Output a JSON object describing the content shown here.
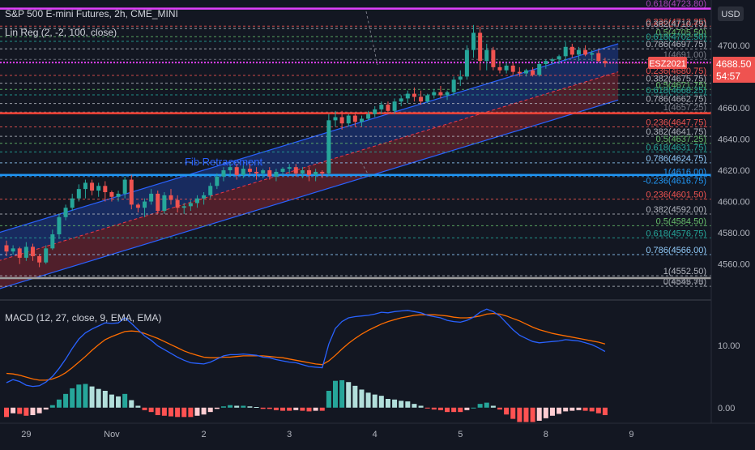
{
  "legend": {
    "symbol_line": "S&P 500 E-mini Futures, 2h, CME_MINI",
    "linreg_line": "Lin Reg (2, -2, 100, close)",
    "macd_line": "MACD (12, 27, close, 9, EMA, EMA)"
  },
  "price_axis": {
    "currency_button": "USD",
    "ticks": [
      "4700.00",
      "4680.00",
      "4660.00",
      "4640.00",
      "4620.00",
      "4600.00",
      "4580.00",
      "4560.00"
    ],
    "macd_ticks": [
      "10.00",
      "0.00"
    ]
  },
  "last_price": {
    "label": "ESZ2021",
    "value": "4688.50",
    "countdown": "54:57"
  },
  "fib_label": "Fib Retracement",
  "time_axis": [
    "29",
    "Nov",
    "2",
    "3",
    "4",
    "5",
    "8",
    "9"
  ],
  "colors": {
    "background": "#131722",
    "up": "#26a69a",
    "down": "#ef5350",
    "channel_upper": "#2962ff",
    "channel_lower": "#f23645",
    "macd": "#2962ff",
    "signal": "#ff6d00",
    "hist_up_strong": "#26a69a",
    "hist_up_weak": "#b2dfdb",
    "hist_down_strong": "#ff5252",
    "hist_down_weak": "#ffcdd2",
    "magenta_line": "#e040fb",
    "red_line": "#f44336",
    "blue_line": "#2196f3"
  },
  "fib_sets": [
    {
      "name": "fib-upper",
      "levels": [
        {
          "label": "0.618(4723.80)",
          "value": 4723.8,
          "color": "#ab47bc"
        },
        {
          "label": "0.236(4712.25)",
          "value": 4712.25,
          "color": "#ef5350"
        },
        {
          "label": "0.382(4710.75)",
          "value": 4710.75,
          "color": "#b2b5be"
        },
        {
          "label": "0.5(4705.50)",
          "value": 4705.5,
          "color": "#66bb6a"
        },
        {
          "label": "0.618(4702.50)",
          "value": 4702.5,
          "color": "#26a69a"
        },
        {
          "label": "0.786(4697.75)",
          "value": 4697.75,
          "color": "#b2b5be"
        },
        {
          "label": "1(4691.00)",
          "value": 4691.0,
          "color": "#787b86"
        }
      ]
    },
    {
      "name": "fib-mid",
      "levels": [
        {
          "label": "0.236(4680.75)",
          "value": 4680.75,
          "color": "#ef5350"
        },
        {
          "label": "0.382(4675.75)",
          "value": 4675.75,
          "color": "#b2b5be"
        },
        {
          "label": "0.5(4671.75)",
          "value": 4671.75,
          "color": "#66bb6a"
        },
        {
          "label": "0.618(4668.25)",
          "value": 4668.25,
          "color": "#26a69a"
        },
        {
          "label": "0.786(4662.75)",
          "value": 4662.75,
          "color": "#b2b5be"
        },
        {
          "label": "1(4657.25)",
          "value": 4657.25,
          "color": "#787b86"
        }
      ]
    },
    {
      "name": "fib-lower",
      "levels": [
        {
          "label": "0.236(4647.75)",
          "value": 4647.75,
          "color": "#ef5350"
        },
        {
          "label": "0.382(4641.75)",
          "value": 4641.75,
          "color": "#b2b5be"
        },
        {
          "label": "0.5(4637.25)",
          "value": 4637.25,
          "color": "#66bb6a"
        },
        {
          "label": "0.618(4631.75)",
          "value": 4631.75,
          "color": "#26a69a"
        },
        {
          "label": "0.786(4624.75)",
          "value": 4624.75,
          "color": "#90caf9"
        },
        {
          "label": "1(4616.00)",
          "value": 4616.0,
          "color": "#2196f3"
        }
      ]
    },
    {
      "name": "fib-bottom",
      "levels": [
        {
          "label": "0.236(4601.50)",
          "value": 4601.5,
          "color": "#ef5350"
        },
        {
          "label": "0.382(4592.00)",
          "value": 4592.0,
          "color": "#b2b5be"
        },
        {
          "label": "0.5(4584.50)",
          "value": 4584.5,
          "color": "#66bb6a"
        },
        {
          "label": "0.618(4576.75)",
          "value": 4576.75,
          "color": "#26a69a"
        },
        {
          "label": "0.786(4566.00)",
          "value": 4566.0,
          "color": "#90caf9"
        },
        {
          "label": "1(4552.50)",
          "value": 4552.5,
          "color": "#b2b5be"
        },
        {
          "label": "0(4545.75)",
          "value": 4545.75,
          "color": "#b2b5be"
        }
      ]
    }
  ],
  "extra_fib_labels": [
    {
      "label": "-0.236(4616.75)",
      "value": 4616.75,
      "color": "#2196f3"
    },
    {
      "label": "0(4552.50)",
      "value": 4552.5,
      "color": "#787b86"
    }
  ],
  "horizontal_lines": [
    {
      "name": "magenta-top-line",
      "value": 4723.5,
      "color": "#e040fb",
      "style": "solid"
    },
    {
      "name": "magenta-dotted-line",
      "value": 4689,
      "color": "#e040fb",
      "style": "dotted"
    },
    {
      "name": "red-level-line",
      "value": 4656.5,
      "color": "#f44336",
      "style": "solid"
    },
    {
      "name": "blue-level-line",
      "value": 4617,
      "color": "#2196f3",
      "style": "solid"
    },
    {
      "name": "grey-bottom-line",
      "value": 4551,
      "color": "#9e9e9e",
      "style": "solid"
    }
  ],
  "chart_data": {
    "type": "candlestick",
    "title": "S&P 500 E-mini Futures, 2h, CME_MINI",
    "ylim": [
      4538,
      4729
    ],
    "y_ticks": [
      4560,
      4580,
      4600,
      4620,
      4640,
      4660,
      4680,
      4700
    ],
    "x_ticks": [
      {
        "label": "29",
        "index": 3
      },
      {
        "label": "Nov",
        "index": 16
      },
      {
        "label": "2",
        "index": 30
      },
      {
        "label": "3",
        "index": 43
      },
      {
        "label": "4",
        "index": 56
      },
      {
        "label": "5",
        "index": 69
      },
      {
        "label": "8",
        "index": 82
      },
      {
        "label": "9",
        "index": 95
      }
    ],
    "candles": [
      [
        4572,
        4575,
        4565,
        4568
      ],
      [
        4568,
        4572,
        4566,
        4570
      ],
      [
        4570,
        4571,
        4560,
        4564
      ],
      [
        4564,
        4574,
        4562,
        4571
      ],
      [
        4571,
        4573,
        4562,
        4565
      ],
      [
        4565,
        4566,
        4558,
        4561
      ],
      [
        4561,
        4572,
        4560,
        4570
      ],
      [
        4570,
        4582,
        4569,
        4579
      ],
      [
        4579,
        4592,
        4576,
        4590
      ],
      [
        4590,
        4598,
        4588,
        4596
      ],
      [
        4596,
        4605,
        4594,
        4602
      ],
      [
        4602,
        4611,
        4600,
        4608
      ],
      [
        4608,
        4614,
        4602,
        4612
      ],
      [
        4612,
        4614,
        4604,
        4607
      ],
      [
        4607,
        4612,
        4603,
        4610
      ],
      [
        4610,
        4613,
        4600,
        4606
      ],
      [
        4606,
        4607,
        4600,
        4603
      ],
      [
        4603,
        4607,
        4600,
        4605
      ],
      [
        4605,
        4616,
        4602,
        4614
      ],
      [
        4614,
        4617,
        4595,
        4598
      ],
      [
        4598,
        4599,
        4593,
        4596
      ],
      [
        4596,
        4602,
        4590,
        4600
      ],
      [
        4600,
        4608,
        4598,
        4605
      ],
      [
        4605,
        4607,
        4592,
        4594
      ],
      [
        4594,
        4606,
        4592,
        4604
      ],
      [
        4604,
        4608,
        4598,
        4601
      ],
      [
        4601,
        4604,
        4593,
        4596
      ],
      [
        4596,
        4599,
        4592,
        4597
      ],
      [
        4597,
        4601,
        4594,
        4599
      ],
      [
        4599,
        4604,
        4596,
        4602
      ],
      [
        4602,
        4606,
        4598,
        4604
      ],
      [
        4604,
        4612,
        4602,
        4610
      ],
      [
        4610,
        4618,
        4608,
        4616
      ],
      [
        4616,
        4622,
        4613,
        4620
      ],
      [
        4620,
        4624,
        4616,
        4622
      ],
      [
        4622,
        4624,
        4614,
        4617
      ],
      [
        4617,
        4623,
        4615,
        4621
      ],
      [
        4621,
        4624,
        4617,
        4619
      ],
      [
        4619,
        4622,
        4614,
        4618
      ],
      [
        4618,
        4621,
        4615,
        4620
      ],
      [
        4620,
        4622,
        4614,
        4616
      ],
      [
        4616,
        4621,
        4613,
        4619
      ],
      [
        4619,
        4622,
        4617,
        4621
      ],
      [
        4621,
        4624,
        4618,
        4622
      ],
      [
        4622,
        4624,
        4616,
        4618
      ],
      [
        4618,
        4622,
        4615,
        4620
      ],
      [
        4620,
        4622,
        4613,
        4617
      ],
      [
        4617,
        4621,
        4613,
        4619
      ],
      [
        4619,
        4620,
        4615,
        4618
      ],
      [
        4618,
        4656,
        4616,
        4652
      ],
      [
        4652,
        4658,
        4648,
        4654
      ],
      [
        4654,
        4658,
        4646,
        4650
      ],
      [
        4650,
        4656,
        4648,
        4655
      ],
      [
        4655,
        4657,
        4648,
        4651
      ],
      [
        4651,
        4655,
        4648,
        4653
      ],
      [
        4653,
        4658,
        4652,
        4656
      ],
      [
        4656,
        4661,
        4654,
        4659
      ],
      [
        4659,
        4664,
        4656,
        4662
      ],
      [
        4662,
        4664,
        4656,
        4658
      ],
      [
        4658,
        4666,
        4656,
        4664
      ],
      [
        4664,
        4668,
        4661,
        4666
      ],
      [
        4666,
        4671,
        4663,
        4669
      ],
      [
        4669,
        4673,
        4664,
        4667
      ],
      [
        4667,
        4671,
        4662,
        4664
      ],
      [
        4664,
        4669,
        4663,
        4668
      ],
      [
        4668,
        4672,
        4666,
        4670
      ],
      [
        4670,
        4674,
        4666,
        4668
      ],
      [
        4668,
        4671,
        4665,
        4670
      ],
      [
        4670,
        4680,
        4668,
        4678
      ],
      [
        4678,
        4684,
        4674,
        4680
      ],
      [
        4680,
        4700,
        4678,
        4697
      ],
      [
        4697,
        4713,
        4692,
        4708
      ],
      [
        4708,
        4712,
        4684,
        4690
      ],
      [
        4690,
        4701,
        4684,
        4697
      ],
      [
        4697,
        4699,
        4684,
        4686
      ],
      [
        4686,
        4690,
        4682,
        4684
      ],
      [
        4684,
        4689,
        4682,
        4687
      ],
      [
        4687,
        4689,
        4681,
        4683
      ],
      [
        4683,
        4686,
        4680,
        4682
      ],
      [
        4682,
        4685,
        4680,
        4684
      ],
      [
        4684,
        4686,
        4680,
        4681
      ],
      [
        4681,
        4690,
        4680,
        4688
      ],
      [
        4688,
        4691,
        4685,
        4690
      ],
      [
        4690,
        4692,
        4688,
        4691
      ],
      [
        4691,
        4694,
        4688,
        4693
      ],
      [
        4693,
        4702,
        4690,
        4699
      ],
      [
        4699,
        4701,
        4692,
        4694
      ],
      [
        4694,
        4699,
        4690,
        4697
      ],
      [
        4697,
        4700,
        4693,
        4694
      ],
      [
        4694,
        4697,
        4690,
        4695
      ],
      [
        4695,
        4697,
        4689,
        4690
      ],
      [
        4690,
        4692,
        4686,
        4688.5
      ]
    ],
    "regression_channel": {
      "start_index": 0,
      "end_index": 93,
      "center_start": 4562,
      "center_end": 4683,
      "upper_offset": 18,
      "lower_offset": -18
    },
    "macd": {
      "name": "MACD (12, 27, close, 9, EMA, EMA)",
      "ylim": [
        -2.5,
        17
      ],
      "macd_line": [
        4,
        4.5,
        4.2,
        3.6,
        3.4,
        3.5,
        4.1,
        5,
        6.3,
        7.8,
        9.5,
        11,
        12,
        12.6,
        13.1,
        13.6,
        13.5,
        13.6,
        14.4,
        13.5,
        12.5,
        11.5,
        10.8,
        9.9,
        9.3,
        8.7,
        8.1,
        7.6,
        7.2,
        7.1,
        7,
        7.3,
        7.8,
        8.3,
        8.5,
        8.5,
        8.6,
        8.5,
        8.4,
        8.1,
        8,
        7.7,
        7.5,
        7.3,
        7.2,
        6.9,
        6.6,
        6.5,
        6.4,
        10.2,
        12.7,
        13.8,
        14.4,
        14.6,
        14.7,
        14.8,
        15,
        15.3,
        15.2,
        15.4,
        15.5,
        15.6,
        15.4,
        15.2,
        14.8,
        14.6,
        14.4,
        14,
        13.8,
        13.7,
        14,
        14.5,
        15.3,
        15.8,
        15.4,
        14.7,
        13.6,
        12.5,
        11.6,
        11.1,
        10.6,
        10.4,
        10.5,
        10.6,
        10.7,
        10.9,
        10.8,
        10.7,
        10.4,
        10.1,
        9.6,
        9
      ],
      "signal_line": [
        5.5,
        5.4,
        5.2,
        4.9,
        4.6,
        4.4,
        4.4,
        4.6,
        5,
        5.6,
        6.4,
        7.3,
        8.2,
        9.2,
        10.1,
        10.9,
        11.4,
        11.8,
        12.2,
        12.3,
        12.2,
        11.9,
        11.5,
        11.1,
        10.6,
        10.1,
        9.6,
        9.1,
        8.7,
        8.4,
        8.1,
        8,
        8,
        8.1,
        8.1,
        8.2,
        8.3,
        8.3,
        8.3,
        8.3,
        8.2,
        8.1,
        8,
        7.8,
        7.6,
        7.4,
        7.2,
        7,
        6.9,
        7.5,
        8.4,
        9.4,
        10.3,
        11.1,
        11.8,
        12.4,
        12.9,
        13.4,
        13.8,
        14.1,
        14.4,
        14.6,
        14.8,
        14.9,
        14.9,
        14.9,
        14.8,
        14.7,
        14.5,
        14.4,
        14.4,
        14.5,
        14.7,
        15,
        15.1,
        15,
        14.7,
        14.3,
        13.9,
        13.4,
        12.9,
        12.5,
        12.2,
        11.9,
        11.7,
        11.5,
        11.3,
        11.1,
        10.9,
        10.7,
        10.5,
        10.2
      ],
      "histogram": [
        -1.5,
        -0.9,
        -1,
        -1.3,
        -1.2,
        -0.9,
        -0.3,
        0.4,
        1.3,
        2.2,
        3.1,
        3.7,
        3.8,
        3.4,
        3,
        2.7,
        2.1,
        1.8,
        2.2,
        1.2,
        0.3,
        -0.4,
        -0.7,
        -1.2,
        -1.3,
        -1.4,
        -1.5,
        -1.5,
        -1.5,
        -1.3,
        -1.1,
        -0.7,
        -0.2,
        0.2,
        0.4,
        0.3,
        0.3,
        0.2,
        0.1,
        -0.2,
        -0.2,
        -0.4,
        -0.5,
        -0.5,
        -0.4,
        -0.5,
        -0.6,
        -0.5,
        -0.5,
        2.7,
        4.3,
        4.4,
        4.1,
        3.5,
        2.9,
        2.4,
        2.1,
        1.9,
        1.4,
        1.3,
        1.1,
        1,
        0.6,
        0.3,
        -0.1,
        -0.3,
        -0.4,
        -0.7,
        -0.7,
        -0.7,
        -0.4,
        0,
        0.6,
        0.8,
        0.3,
        -0.3,
        -1.1,
        -1.8,
        -2.3,
        -2.3,
        -2.3,
        -2.1,
        -1.7,
        -1.3,
        -1,
        -0.6,
        -0.5,
        -0.4,
        -0.5,
        -0.6,
        -0.9,
        -1.2
      ]
    }
  }
}
